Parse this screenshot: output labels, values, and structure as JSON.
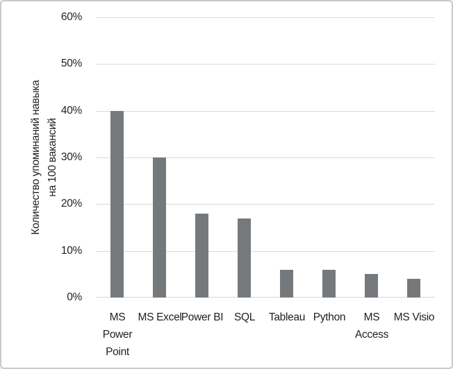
{
  "chart_data": {
    "type": "bar",
    "title": "",
    "categories": [
      "MS\nPower\nPoint",
      "MS Excel",
      "Power BI",
      "SQL",
      "Tableau",
      "Python",
      "MS\nAccess",
      "MS Visio"
    ],
    "values": [
      40,
      30,
      18,
      17,
      6,
      6,
      5,
      4
    ],
    "value_unit": "%",
    "xlabel": "",
    "ylabel": "Количество упоминаний навыка\nна 100 вакансий",
    "ylim": [
      0,
      60
    ],
    "ytick_step": 10,
    "ytick_labels": [
      "0%",
      "10%",
      "20%",
      "30%",
      "40%",
      "50%",
      "60%"
    ],
    "grid": "horizontal-only",
    "legend": "none",
    "colors": {
      "bar": "#76797c",
      "gridline": "#d9d9d9",
      "axis_line": "#d4d6d8",
      "text": "#1f1f1f",
      "frame_border": "#c9c9c9",
      "background": "#ffffff"
    }
  }
}
